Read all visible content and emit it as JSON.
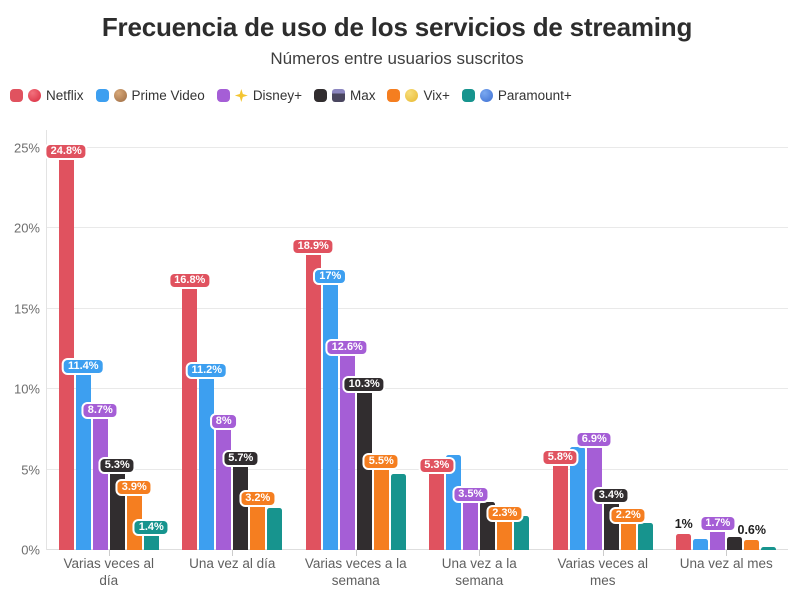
{
  "chart_data": {
    "type": "bar",
    "title": "Frecuencia de uso de los servicios de streaming",
    "subtitle": "Números entre usuarios suscritos",
    "legend_position": "top-left",
    "grid": true,
    "categories": [
      "Varias veces al día",
      "Una vez al día",
      "Varias veces a la semana",
      "Una vez a la semana",
      "Varias veces al mes",
      "Una vez al mes"
    ],
    "y_axis": {
      "tick_labels": [
        "0%",
        "5%",
        "10%",
        "15%",
        "20%",
        "25%"
      ],
      "tick_values": [
        0,
        5,
        10,
        15,
        20,
        25
      ],
      "ylim": [
        0,
        26
      ]
    },
    "series": [
      {
        "name": "Netflix",
        "color": "#e0525f",
        "icon": "red-ball-icon",
        "icon_class": "ball-red",
        "values": [
          24.8,
          16.8,
          18.9,
          5.3,
          5.8,
          1
        ],
        "labels": [
          "24.8%",
          "16.8%",
          "18.9%",
          "5.3%",
          "5.8%",
          "1%"
        ],
        "plain_label_indexes": [
          5
        ]
      },
      {
        "name": "Prime Video",
        "color": "#3d9ff0",
        "icon": "football-icon",
        "icon_class": "football",
        "values": [
          11.4,
          11.2,
          17,
          5.9,
          6.4,
          0.7
        ],
        "labels": [
          "11.4%",
          "11.2%",
          "17%",
          null,
          null,
          null
        ],
        "plain_label_indexes": []
      },
      {
        "name": "Disney+",
        "color": "#a55ed6",
        "icon": "sparkle-icon",
        "icon_class": "sparkle",
        "values": [
          8.7,
          8,
          12.6,
          3.5,
          6.9,
          1.7
        ],
        "labels": [
          "8.7%",
          "8%",
          "12.6%",
          "3.5%",
          "6.9%",
          "1.7%"
        ],
        "plain_label_indexes": []
      },
      {
        "name": "Max",
        "color": "#312d2f",
        "icon": "clapperboard-icon",
        "icon_class": "clapper",
        "values": [
          5.3,
          5.7,
          10.3,
          3.0,
          3.4,
          0.8
        ],
        "labels": [
          "5.3%",
          "5.7%",
          "10.3%",
          null,
          "3.4%",
          null
        ],
        "plain_label_indexes": []
      },
      {
        "name": "Vix+",
        "color": "#f57e20",
        "icon": "yellow-ball-icon",
        "icon_class": "ball-yellow",
        "values": [
          3.9,
          3.2,
          5.5,
          2.3,
          2.2,
          0.6
        ],
        "labels": [
          "3.9%",
          "3.2%",
          "5.5%",
          "2.3%",
          "2.2%",
          "0.6%"
        ],
        "plain_label_indexes": [
          5
        ]
      },
      {
        "name": "Paramount+",
        "color": "#17948e",
        "icon": "blue-ball-icon",
        "icon_class": "ball-blue",
        "values": [
          1.4,
          2.6,
          4.7,
          2.1,
          1.7,
          0.2
        ],
        "labels": [
          "1.4%",
          null,
          null,
          null,
          null,
          null
        ],
        "plain_label_indexes": []
      }
    ]
  }
}
